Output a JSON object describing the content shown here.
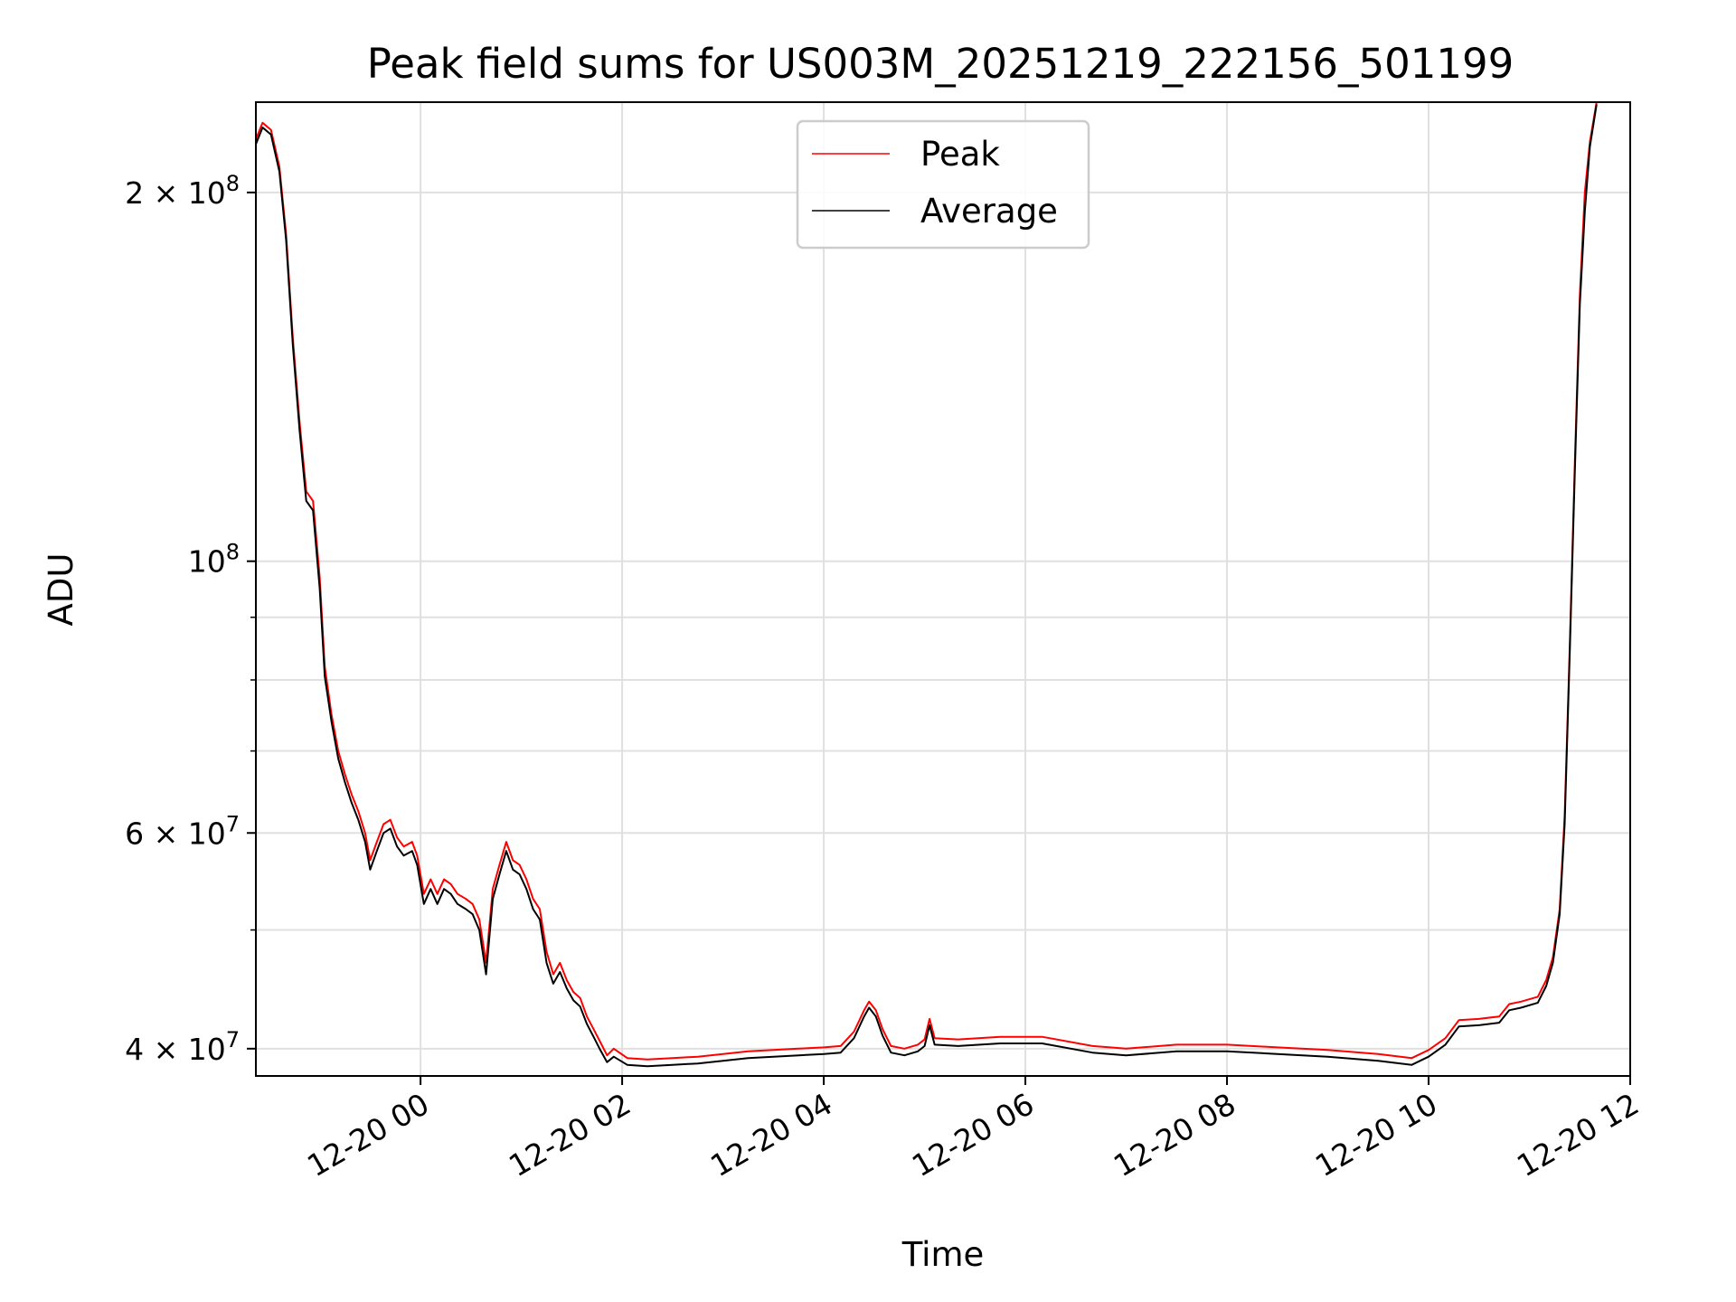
{
  "chart_data": {
    "type": "line",
    "title": "Peak field sums for US003M_20251219_222156_501199",
    "xlabel": "Time",
    "ylabel": "ADU",
    "y_scale": "log",
    "ylim": [
      38000000,
      237000000
    ],
    "xlim": [
      "2025-12-19 22:22",
      "2025-12-20 12:00"
    ],
    "grid": true,
    "legend": {
      "position": "upper-center",
      "entries": [
        "Peak",
        "Average"
      ]
    },
    "x_ticks": [
      {
        "time": "2025-12-20 00:00",
        "label": "12-20 00"
      },
      {
        "time": "2025-12-20 02:00",
        "label": "12-20 02"
      },
      {
        "time": "2025-12-20 04:00",
        "label": "12-20 04"
      },
      {
        "time": "2025-12-20 06:00",
        "label": "12-20 06"
      },
      {
        "time": "2025-12-20 08:00",
        "label": "12-20 08"
      },
      {
        "time": "2025-12-20 10:00",
        "label": "12-20 10"
      },
      {
        "time": "2025-12-20 12:00",
        "label": "12-20 12"
      }
    ],
    "y_ticks": [
      {
        "value": 40000000,
        "base": "4",
        "exp": "7"
      },
      {
        "value": 60000000,
        "base": "6",
        "exp": "7"
      },
      {
        "value": 100000000,
        "base": "",
        "exp": "8"
      },
      {
        "value": 200000000,
        "base": "2",
        "exp": "8"
      }
    ],
    "y_minor_ticks": [
      50000000,
      70000000,
      80000000,
      90000000
    ],
    "series": [
      {
        "name": "Peak",
        "color": "#ff0000",
        "points": [
          [
            "2025-12-19 22:22",
            221000000
          ],
          [
            "2025-12-19 22:26",
            228000000
          ],
          [
            "2025-12-19 22:31",
            225000000
          ],
          [
            "2025-12-19 22:36",
            210000000
          ],
          [
            "2025-12-19 22:40",
            185000000
          ],
          [
            "2025-12-19 22:44",
            152000000
          ],
          [
            "2025-12-19 22:48",
            130000000
          ],
          [
            "2025-12-19 22:52",
            114000000
          ],
          [
            "2025-12-19 22:56",
            112000000
          ],
          [
            "2025-12-19 23:00",
            97000000
          ],
          [
            "2025-12-19 23:03",
            82000000
          ],
          [
            "2025-12-19 23:07",
            75000000
          ],
          [
            "2025-12-19 23:11",
            70000000
          ],
          [
            "2025-12-19 23:15",
            67000000
          ],
          [
            "2025-12-19 23:19",
            64500000
          ],
          [
            "2025-12-19 23:23",
            62500000
          ],
          [
            "2025-12-19 23:27",
            60000000
          ],
          [
            "2025-12-19 23:30",
            57000000
          ],
          [
            "2025-12-19 23:34",
            59000000
          ],
          [
            "2025-12-19 23:38",
            61000000
          ],
          [
            "2025-12-19 23:42",
            61500000
          ],
          [
            "2025-12-19 23:46",
            59500000
          ],
          [
            "2025-12-19 23:50",
            58500000
          ],
          [
            "2025-12-19 23:55",
            59000000
          ],
          [
            "2025-12-19 23:58",
            57500000
          ],
          [
            "2025-12-20 00:02",
            53500000
          ],
          [
            "2025-12-20 00:06",
            55000000
          ],
          [
            "2025-12-20 00:10",
            53500000
          ],
          [
            "2025-12-20 00:14",
            55000000
          ],
          [
            "2025-12-20 00:18",
            54500000
          ],
          [
            "2025-12-20 00:22",
            53500000
          ],
          [
            "2025-12-20 00:27",
            53000000
          ],
          [
            "2025-12-20 00:31",
            52500000
          ],
          [
            "2025-12-20 00:35",
            51000000
          ],
          [
            "2025-12-20 00:39",
            47000000
          ],
          [
            "2025-12-20 00:43",
            54000000
          ],
          [
            "2025-12-20 00:47",
            56500000
          ],
          [
            "2025-12-20 00:51",
            59000000
          ],
          [
            "2025-12-20 00:55",
            57000000
          ],
          [
            "2025-12-20 00:59",
            56500000
          ],
          [
            "2025-12-20 01:03",
            55000000
          ],
          [
            "2025-12-20 01:07",
            53000000
          ],
          [
            "2025-12-20 01:11",
            52000000
          ],
          [
            "2025-12-20 01:15",
            48000000
          ],
          [
            "2025-12-20 01:19",
            46000000
          ],
          [
            "2025-12-20 01:23",
            47000000
          ],
          [
            "2025-12-20 01:27",
            45500000
          ],
          [
            "2025-12-20 01:31",
            44500000
          ],
          [
            "2025-12-20 01:35",
            44000000
          ],
          [
            "2025-12-20 01:39",
            42500000
          ],
          [
            "2025-12-20 01:43",
            41500000
          ],
          [
            "2025-12-20 01:47",
            40500000
          ],
          [
            "2025-12-20 01:51",
            39500000
          ],
          [
            "2025-12-20 01:55",
            40000000
          ],
          [
            "2025-12-20 02:03",
            39300000
          ],
          [
            "2025-12-20 02:15",
            39200000
          ],
          [
            "2025-12-20 02:30",
            39300000
          ],
          [
            "2025-12-20 02:45",
            39400000
          ],
          [
            "2025-12-20 03:00",
            39600000
          ],
          [
            "2025-12-20 03:15",
            39800000
          ],
          [
            "2025-12-20 03:30",
            39900000
          ],
          [
            "2025-12-20 03:45",
            40000000
          ],
          [
            "2025-12-20 04:00",
            40100000
          ],
          [
            "2025-12-20 04:10",
            40200000
          ],
          [
            "2025-12-20 04:18",
            41300000
          ],
          [
            "2025-12-20 04:24",
            43000000
          ],
          [
            "2025-12-20 04:27",
            43700000
          ],
          [
            "2025-12-20 04:31",
            43000000
          ],
          [
            "2025-12-20 04:35",
            41500000
          ],
          [
            "2025-12-20 04:40",
            40200000
          ],
          [
            "2025-12-20 04:48",
            40000000
          ],
          [
            "2025-12-20 04:56",
            40300000
          ],
          [
            "2025-12-20 05:00",
            40700000
          ],
          [
            "2025-12-20 05:03",
            42300000
          ],
          [
            "2025-12-20 05:06",
            40800000
          ],
          [
            "2025-12-20 05:20",
            40700000
          ],
          [
            "2025-12-20 05:45",
            40900000
          ],
          [
            "2025-12-20 06:10",
            40900000
          ],
          [
            "2025-12-20 06:40",
            40200000
          ],
          [
            "2025-12-20 07:00",
            40000000
          ],
          [
            "2025-12-20 07:30",
            40300000
          ],
          [
            "2025-12-20 08:00",
            40300000
          ],
          [
            "2025-12-20 08:30",
            40100000
          ],
          [
            "2025-12-20 09:00",
            39900000
          ],
          [
            "2025-12-20 09:30",
            39600000
          ],
          [
            "2025-12-20 09:50",
            39300000
          ],
          [
            "2025-12-20 10:00",
            39900000
          ],
          [
            "2025-12-20 10:10",
            40800000
          ],
          [
            "2025-12-20 10:18",
            42200000
          ],
          [
            "2025-12-20 10:30",
            42300000
          ],
          [
            "2025-12-20 10:42",
            42500000
          ],
          [
            "2025-12-20 10:48",
            43500000
          ],
          [
            "2025-12-20 10:55",
            43700000
          ],
          [
            "2025-12-20 11:05",
            44100000
          ],
          [
            "2025-12-20 11:10",
            45500000
          ],
          [
            "2025-12-20 11:14",
            47500000
          ],
          [
            "2025-12-20 11:18",
            52000000
          ],
          [
            "2025-12-20 11:21",
            62000000
          ],
          [
            "2025-12-20 11:24",
            85000000
          ],
          [
            "2025-12-20 11:27",
            120000000
          ],
          [
            "2025-12-20 11:30",
            165000000
          ],
          [
            "2025-12-20 11:33",
            200000000
          ],
          [
            "2025-12-20 11:36",
            220000000
          ],
          [
            "2025-12-20 11:40",
            237000000
          ]
        ]
      },
      {
        "name": "Average",
        "color": "#000000",
        "points": [
          [
            "2025-12-19 22:22",
            219000000
          ],
          [
            "2025-12-19 22:26",
            226000000
          ],
          [
            "2025-12-19 22:31",
            223000000
          ],
          [
            "2025-12-19 22:36",
            208000000
          ],
          [
            "2025-12-19 22:40",
            183000000
          ],
          [
            "2025-12-19 22:44",
            150000000
          ],
          [
            "2025-12-19 22:48",
            128000000
          ],
          [
            "2025-12-19 22:52",
            112000000
          ],
          [
            "2025-12-19 22:56",
            110000000
          ],
          [
            "2025-12-19 23:00",
            95000000
          ],
          [
            "2025-12-19 23:03",
            80500000
          ],
          [
            "2025-12-19 23:07",
            74000000
          ],
          [
            "2025-12-19 23:11",
            69000000
          ],
          [
            "2025-12-19 23:15",
            66000000
          ],
          [
            "2025-12-19 23:19",
            63500000
          ],
          [
            "2025-12-19 23:23",
            61500000
          ],
          [
            "2025-12-19 23:27",
            59000000
          ],
          [
            "2025-12-19 23:30",
            56000000
          ],
          [
            "2025-12-19 23:34",
            58000000
          ],
          [
            "2025-12-19 23:38",
            60000000
          ],
          [
            "2025-12-19 23:42",
            60500000
          ],
          [
            "2025-12-19 23:46",
            58500000
          ],
          [
            "2025-12-19 23:50",
            57500000
          ],
          [
            "2025-12-19 23:55",
            58000000
          ],
          [
            "2025-12-19 23:58",
            56500000
          ],
          [
            "2025-12-20 00:02",
            52500000
          ],
          [
            "2025-12-20 00:06",
            54000000
          ],
          [
            "2025-12-20 00:10",
            52500000
          ],
          [
            "2025-12-20 00:14",
            54000000
          ],
          [
            "2025-12-20 00:18",
            53500000
          ],
          [
            "2025-12-20 00:22",
            52500000
          ],
          [
            "2025-12-20 00:27",
            52000000
          ],
          [
            "2025-12-20 00:31",
            51500000
          ],
          [
            "2025-12-20 00:35",
            50000000
          ],
          [
            "2025-12-20 00:39",
            46000000
          ],
          [
            "2025-12-20 00:43",
            53000000
          ],
          [
            "2025-12-20 00:47",
            55500000
          ],
          [
            "2025-12-20 00:51",
            58000000
          ],
          [
            "2025-12-20 00:55",
            56000000
          ],
          [
            "2025-12-20 00:59",
            55500000
          ],
          [
            "2025-12-20 01:03",
            54000000
          ],
          [
            "2025-12-20 01:07",
            52000000
          ],
          [
            "2025-12-20 01:11",
            51000000
          ],
          [
            "2025-12-20 01:15",
            47000000
          ],
          [
            "2025-12-20 01:19",
            45200000
          ],
          [
            "2025-12-20 01:23",
            46200000
          ],
          [
            "2025-12-20 01:27",
            44800000
          ],
          [
            "2025-12-20 01:31",
            43800000
          ],
          [
            "2025-12-20 01:35",
            43300000
          ],
          [
            "2025-12-20 01:39",
            41900000
          ],
          [
            "2025-12-20 01:43",
            40900000
          ],
          [
            "2025-12-20 01:47",
            39900000
          ],
          [
            "2025-12-20 01:51",
            39000000
          ],
          [
            "2025-12-20 01:55",
            39400000
          ],
          [
            "2025-12-20 02:03",
            38800000
          ],
          [
            "2025-12-20 02:15",
            38700000
          ],
          [
            "2025-12-20 02:30",
            38800000
          ],
          [
            "2025-12-20 02:45",
            38900000
          ],
          [
            "2025-12-20 03:00",
            39100000
          ],
          [
            "2025-12-20 03:15",
            39300000
          ],
          [
            "2025-12-20 03:30",
            39400000
          ],
          [
            "2025-12-20 03:45",
            39500000
          ],
          [
            "2025-12-20 04:00",
            39600000
          ],
          [
            "2025-12-20 04:10",
            39700000
          ],
          [
            "2025-12-20 04:18",
            40800000
          ],
          [
            "2025-12-20 04:24",
            42500000
          ],
          [
            "2025-12-20 04:27",
            43200000
          ],
          [
            "2025-12-20 04:31",
            42500000
          ],
          [
            "2025-12-20 04:35",
            41000000
          ],
          [
            "2025-12-20 04:40",
            39700000
          ],
          [
            "2025-12-20 04:48",
            39500000
          ],
          [
            "2025-12-20 04:56",
            39800000
          ],
          [
            "2025-12-20 05:00",
            40200000
          ],
          [
            "2025-12-20 05:03",
            41800000
          ],
          [
            "2025-12-20 05:06",
            40300000
          ],
          [
            "2025-12-20 05:20",
            40200000
          ],
          [
            "2025-12-20 05:45",
            40400000
          ],
          [
            "2025-12-20 06:10",
            40400000
          ],
          [
            "2025-12-20 06:40",
            39700000
          ],
          [
            "2025-12-20 07:00",
            39500000
          ],
          [
            "2025-12-20 07:30",
            39800000
          ],
          [
            "2025-12-20 08:00",
            39800000
          ],
          [
            "2025-12-20 08:30",
            39600000
          ],
          [
            "2025-12-20 09:00",
            39400000
          ],
          [
            "2025-12-20 09:30",
            39100000
          ],
          [
            "2025-12-20 09:50",
            38800000
          ],
          [
            "2025-12-20 10:00",
            39400000
          ],
          [
            "2025-12-20 10:10",
            40300000
          ],
          [
            "2025-12-20 10:18",
            41700000
          ],
          [
            "2025-12-20 10:30",
            41800000
          ],
          [
            "2025-12-20 10:42",
            42000000
          ],
          [
            "2025-12-20 10:48",
            43000000
          ],
          [
            "2025-12-20 10:55",
            43200000
          ],
          [
            "2025-12-20 11:05",
            43600000
          ],
          [
            "2025-12-20 11:10",
            45000000
          ],
          [
            "2025-12-20 11:14",
            47000000
          ],
          [
            "2025-12-20 11:18",
            51500000
          ],
          [
            "2025-12-20 11:21",
            61000000
          ],
          [
            "2025-12-20 11:24",
            84000000
          ],
          [
            "2025-12-20 11:27",
            118000000
          ],
          [
            "2025-12-20 11:30",
            162000000
          ],
          [
            "2025-12-20 11:33",
            193000000
          ],
          [
            "2025-12-20 11:36",
            218000000
          ],
          [
            "2025-12-20 11:40",
            236000000
          ]
        ]
      }
    ]
  }
}
